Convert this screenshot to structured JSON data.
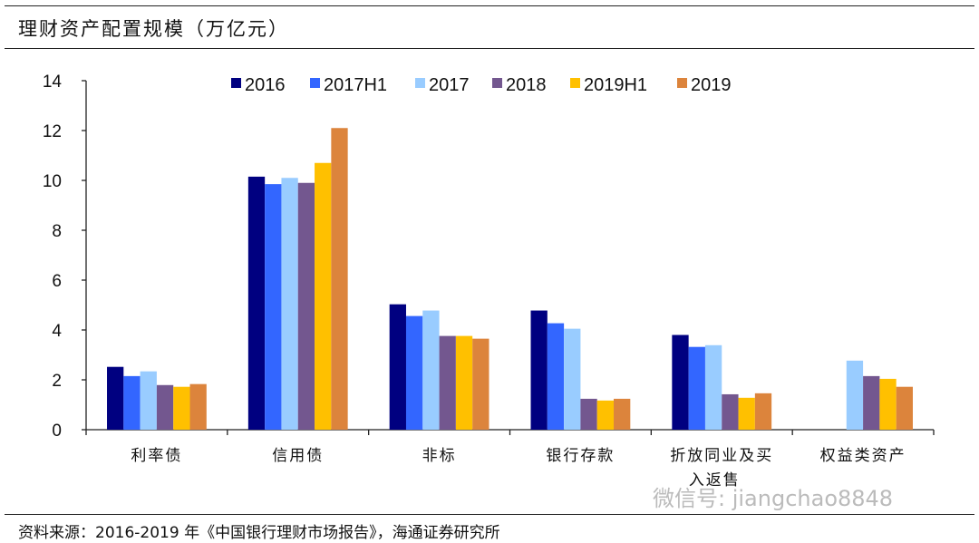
{
  "title": "理财资产配置规模（万亿元）",
  "source": "资料来源：2016-2019 年《中国银行理财市场报告》，海通证券研究所",
  "watermark": "微信号: jiangchao8848",
  "chart_data": {
    "type": "bar",
    "title": "理财资产配置规模（万亿元）",
    "xlabel": "",
    "ylabel": "",
    "ylim": [
      0,
      14
    ],
    "yticks": [
      0,
      2,
      4,
      6,
      8,
      10,
      12,
      14
    ],
    "legend_position": "top",
    "categories": [
      "利率债",
      "信用债",
      "非标",
      "银行存款",
      "折放同业及买入返售",
      "权益类资产"
    ],
    "category_lines": [
      [
        "利率债"
      ],
      [
        "信用债"
      ],
      [
        "非标"
      ],
      [
        "银行存款"
      ],
      [
        "折放同业及买",
        "入返售"
      ],
      [
        "权益类资产"
      ]
    ],
    "series": [
      {
        "name": "2016",
        "color": "#000080",
        "values": [
          2.52,
          10.15,
          5.03,
          4.78,
          3.8,
          null
        ]
      },
      {
        "name": "2017H1",
        "color": "#3366FF",
        "values": [
          2.15,
          9.85,
          4.56,
          4.27,
          3.32,
          null
        ]
      },
      {
        "name": "2017",
        "color": "#99CCFF",
        "values": [
          2.34,
          10.1,
          4.78,
          4.05,
          3.39,
          2.77
        ]
      },
      {
        "name": "2018",
        "color": "#73578F",
        "values": [
          1.79,
          9.9,
          3.76,
          1.24,
          1.42,
          2.15
        ]
      },
      {
        "name": "2019H1",
        "color": "#FFC000",
        "values": [
          1.72,
          10.7,
          3.76,
          1.17,
          1.28,
          2.04
        ]
      },
      {
        "name": "2019",
        "color": "#DC843C",
        "values": [
          1.83,
          12.1,
          3.65,
          1.24,
          1.46,
          1.72
        ]
      }
    ]
  }
}
